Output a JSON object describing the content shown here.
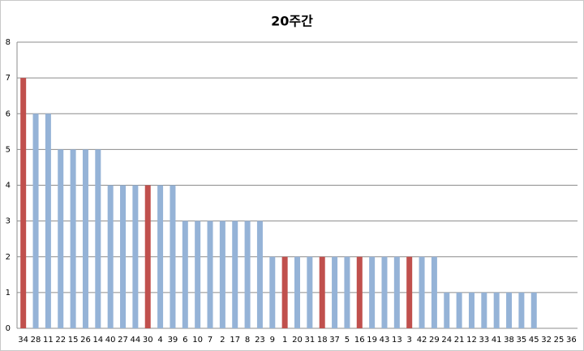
{
  "chart_data": {
    "type": "bar",
    "title": "20주간",
    "categories": [
      "34",
      "28",
      "11",
      "22",
      "15",
      "26",
      "14",
      "40",
      "27",
      "44",
      "30",
      "4",
      "39",
      "6",
      "10",
      "7",
      "2",
      "17",
      "8",
      "23",
      "9",
      "1",
      "20",
      "31",
      "18",
      "37",
      "5",
      "16",
      "19",
      "43",
      "13",
      "3",
      "42",
      "29",
      "24",
      "21",
      "12",
      "33",
      "41",
      "38",
      "35",
      "45",
      "32",
      "25",
      "36"
    ],
    "values": [
      7,
      6,
      6,
      5,
      5,
      5,
      5,
      4,
      4,
      4,
      4,
      4,
      4,
      3,
      3,
      3,
      3,
      3,
      3,
      3,
      2,
      2,
      2,
      2,
      2,
      2,
      2,
      2,
      2,
      2,
      2,
      2,
      2,
      2,
      1,
      1,
      1,
      1,
      1,
      1,
      1,
      1,
      0,
      0,
      0
    ],
    "colors": [
      "#c0504d",
      "#95b3d7",
      "#95b3d7",
      "#95b3d7",
      "#95b3d7",
      "#95b3d7",
      "#95b3d7",
      "#95b3d7",
      "#95b3d7",
      "#95b3d7",
      "#c0504d",
      "#95b3d7",
      "#95b3d7",
      "#95b3d7",
      "#95b3d7",
      "#95b3d7",
      "#95b3d7",
      "#95b3d7",
      "#95b3d7",
      "#95b3d7",
      "#95b3d7",
      "#c0504d",
      "#95b3d7",
      "#95b3d7",
      "#c0504d",
      "#95b3d7",
      "#95b3d7",
      "#c0504d",
      "#95b3d7",
      "#95b3d7",
      "#95b3d7",
      "#c0504d",
      "#95b3d7",
      "#95b3d7",
      "#95b3d7",
      "#95b3d7",
      "#95b3d7",
      "#95b3d7",
      "#95b3d7",
      "#95b3d7",
      "#95b3d7",
      "#95b3d7",
      "#95b3d7",
      "#95b3d7",
      "#95b3d7"
    ],
    "ylim": [
      0,
      8
    ],
    "yticks": [
      0,
      1,
      2,
      3,
      4,
      5,
      6,
      7,
      8
    ],
    "grid": true
  }
}
